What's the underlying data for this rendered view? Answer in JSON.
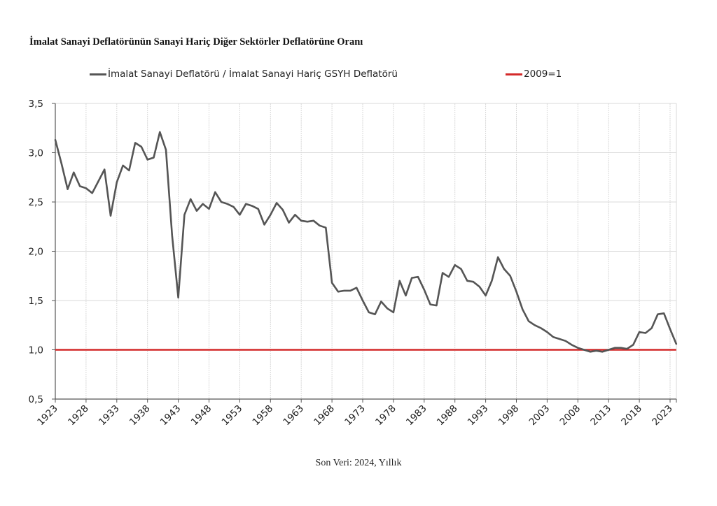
{
  "chart_data": {
    "type": "line",
    "title": "İmalat Sanayi Deflatörünün Sanayi Hariç Diğer Sektörler Deflatörüne Oranı",
    "footer": "Son Veri: 2024, Yıllık",
    "xlabel": "",
    "ylabel": "",
    "ylim": [
      0.5,
      3.5
    ],
    "xlim": [
      1923,
      2024
    ],
    "y_ticks": [
      0.5,
      1.0,
      1.5,
      2.0,
      2.5,
      3.0,
      3.5
    ],
    "y_tick_labels": [
      "0,5",
      "1,0",
      "1,5",
      "2,0",
      "2,5",
      "3,0",
      "3,5"
    ],
    "x_ticks": [
      1923,
      1928,
      1933,
      1938,
      1943,
      1948,
      1953,
      1958,
      1963,
      1968,
      1973,
      1978,
      1983,
      1988,
      1993,
      1998,
      2003,
      2008,
      2013,
      2018,
      2023
    ],
    "x_tick_labels": [
      "1923",
      "1928",
      "1933",
      "1938",
      "1943",
      "1948",
      "1953",
      "1958",
      "1963",
      "1968",
      "1973",
      "1978",
      "1983",
      "1988",
      "1993",
      "1998",
      "2003",
      "2008",
      "2013",
      "2018",
      "2023"
    ],
    "grid": true,
    "legend_position": "top",
    "series": [
      {
        "name": "İmalat Sanayi Deflatörü / İmalat Sanayi Hariç GSYH Deflatörü",
        "color": "#555555",
        "x": [
          1923,
          1924,
          1925,
          1926,
          1927,
          1928,
          1929,
          1930,
          1931,
          1932,
          1933,
          1934,
          1935,
          1936,
          1937,
          1938,
          1939,
          1940,
          1941,
          1942,
          1943,
          1944,
          1945,
          1946,
          1947,
          1948,
          1949,
          1950,
          1951,
          1952,
          1953,
          1954,
          1955,
          1956,
          1957,
          1958,
          1959,
          1960,
          1961,
          1962,
          1963,
          1964,
          1965,
          1966,
          1967,
          1968,
          1969,
          1970,
          1971,
          1972,
          1973,
          1974,
          1975,
          1976,
          1977,
          1978,
          1979,
          1980,
          1981,
          1982,
          1983,
          1984,
          1985,
          1986,
          1987,
          1988,
          1989,
          1990,
          1991,
          1992,
          1993,
          1994,
          1995,
          1996,
          1997,
          1998,
          1999,
          2000,
          2001,
          2002,
          2003,
          2004,
          2005,
          2006,
          2007,
          2008,
          2009,
          2010,
          2011,
          2012,
          2013,
          2014,
          2015,
          2016,
          2017,
          2018,
          2019,
          2020,
          2021,
          2022,
          2023,
          2024
        ],
        "values": [
          3.13,
          2.89,
          2.63,
          2.8,
          2.66,
          2.64,
          2.59,
          2.71,
          2.83,
          2.36,
          2.7,
          2.87,
          2.82,
          3.1,
          3.06,
          2.93,
          2.95,
          3.21,
          3.03,
          2.16,
          1.53,
          2.37,
          2.53,
          2.41,
          2.48,
          2.43,
          2.6,
          2.5,
          2.48,
          2.45,
          2.37,
          2.48,
          2.46,
          2.43,
          2.27,
          2.37,
          2.49,
          2.42,
          2.29,
          2.37,
          2.31,
          2.3,
          2.31,
          2.26,
          2.24,
          1.68,
          1.59,
          1.6,
          1.6,
          1.63,
          1.5,
          1.38,
          1.36,
          1.49,
          1.42,
          1.38,
          1.7,
          1.55,
          1.73,
          1.74,
          1.61,
          1.46,
          1.45,
          1.78,
          1.74,
          1.86,
          1.82,
          1.7,
          1.69,
          1.64,
          1.55,
          1.7,
          1.94,
          1.82,
          1.75,
          1.59,
          1.41,
          1.29,
          1.25,
          1.22,
          1.18,
          1.13,
          1.11,
          1.09,
          1.05,
          1.02,
          1.0,
          0.98,
          0.99,
          0.98,
          1.0,
          1.02,
          1.02,
          1.01,
          1.05,
          1.18,
          1.17,
          1.22,
          1.36,
          1.37,
          1.21,
          1.06
        ]
      },
      {
        "name": "2009=1",
        "color": "#d42a2a",
        "x": [
          1923,
          2024
        ],
        "values": [
          1.0,
          1.0
        ]
      }
    ]
  },
  "legend": {
    "items": [
      {
        "label": "İmalat Sanayi Deflatörü / İmalat Sanayi Hariç GSYH Deflatörü",
        "color": "#555555"
      },
      {
        "label": "2009=1",
        "color": "#d42a2a"
      }
    ]
  }
}
